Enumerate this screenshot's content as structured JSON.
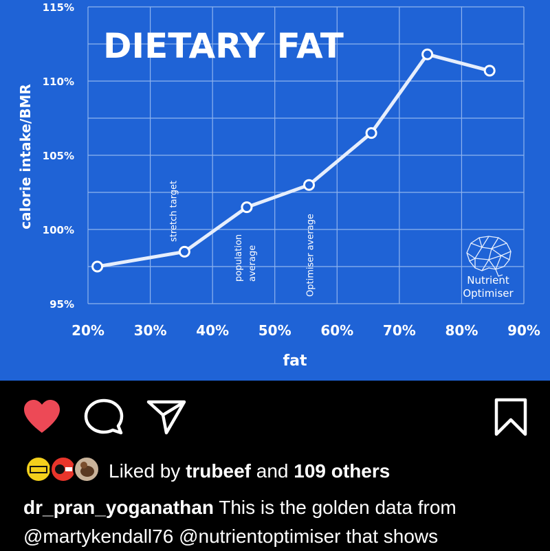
{
  "chart_data": {
    "type": "line",
    "title": "DIETARY FAT",
    "xlabel": "fat",
    "ylabel": "calorie intake/BMR",
    "x_ticks": [
      "20%",
      "30%",
      "40%",
      "50%",
      "60%",
      "70%",
      "80%",
      "90%"
    ],
    "y_ticks": [
      "95%",
      "100%",
      "105%",
      "110%",
      "115%"
    ],
    "xlim": [
      20,
      90
    ],
    "ylim": [
      95,
      115
    ],
    "grid": true,
    "series": [
      {
        "x": [
          21.5,
          35.5,
          45.5,
          55.5,
          65.5,
          74.5,
          84.5
        ],
        "values": [
          97.5,
          98.5,
          101.5,
          103.0,
          106.5,
          111.8,
          110.7
        ]
      }
    ],
    "annotations": [
      {
        "text": "stretch target",
        "x": 35.5
      },
      {
        "text": "population average",
        "x": 45.5
      },
      {
        "text": "Optimiser average",
        "x": 55.5
      }
    ],
    "colors": {
      "background": "#1f63d6",
      "line": "#e6eefc",
      "text": "#ffffff"
    }
  },
  "logo": {
    "line1": "Nutrient",
    "line2": "Optimiser",
    "icon": "brain-network-icon"
  },
  "actions": {
    "like": {
      "icon": "heart-filled-icon",
      "color": "#ed4956"
    },
    "comment": {
      "icon": "comment-bubble-icon"
    },
    "share": {
      "icon": "paper-plane-icon"
    },
    "save": {
      "icon": "bookmark-icon"
    }
  },
  "likes": {
    "prefix": "Liked by",
    "user": "trubeef",
    "connector": "and",
    "others": "109 others"
  },
  "caption": {
    "username": "dr_pran_yoganathan",
    "text_part1": "This is the golden data from",
    "mention1": "@martykendall76",
    "mention2": "@nutrientoptimiser",
    "text_part2": "that shows"
  }
}
